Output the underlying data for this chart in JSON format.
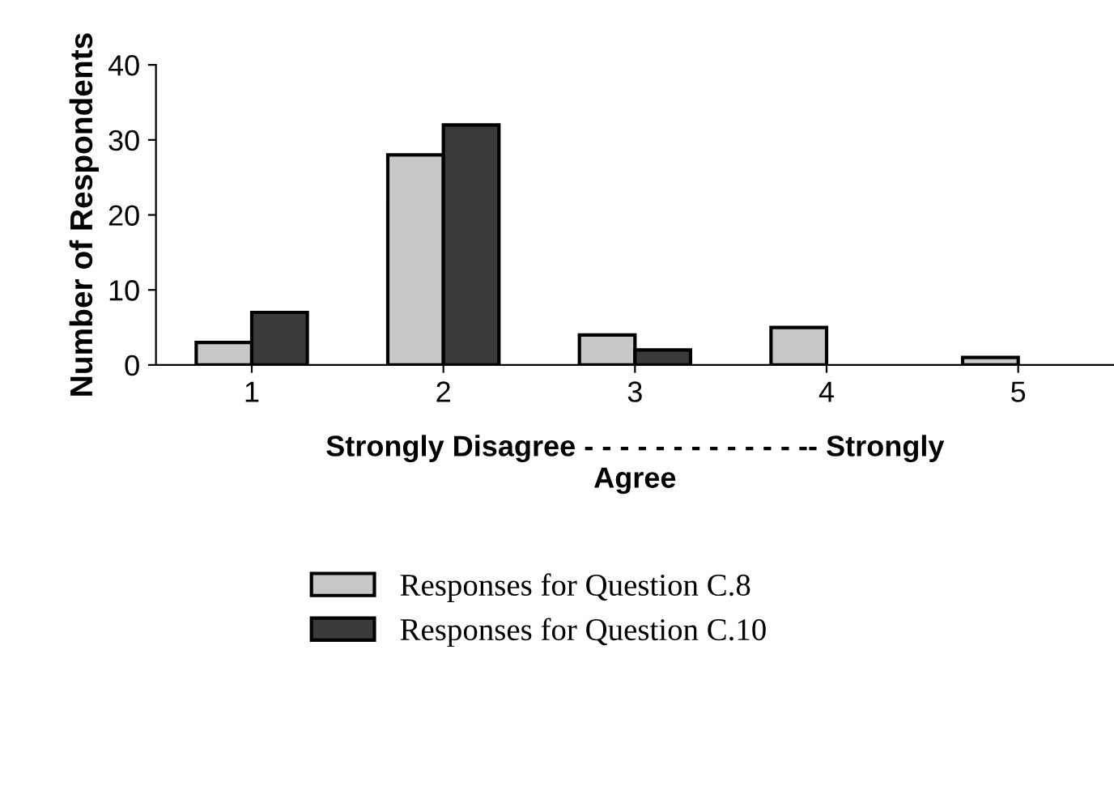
{
  "chart_data": {
    "type": "bar",
    "categories": [
      "1",
      "2",
      "3",
      "4",
      "5"
    ],
    "ylabel": "Number of Respondents",
    "xlabel": "Strongly Disagree - - - - - - - - - - - - -- Strongly\nAgree",
    "series": [
      {
        "name": "Responses for Question C.8",
        "color": "#c8c8c8",
        "values": [
          3,
          28,
          4,
          5,
          1
        ]
      },
      {
        "name": "Responses for Question C.10",
        "color": "#3a3a3a",
        "values": [
          7,
          32,
          2,
          0,
          0
        ]
      }
    ],
    "ylim": [
      0,
      40
    ],
    "yticks": [
      0,
      10,
      20,
      30,
      40
    ],
    "grid": false,
    "legend": "bottom"
  }
}
